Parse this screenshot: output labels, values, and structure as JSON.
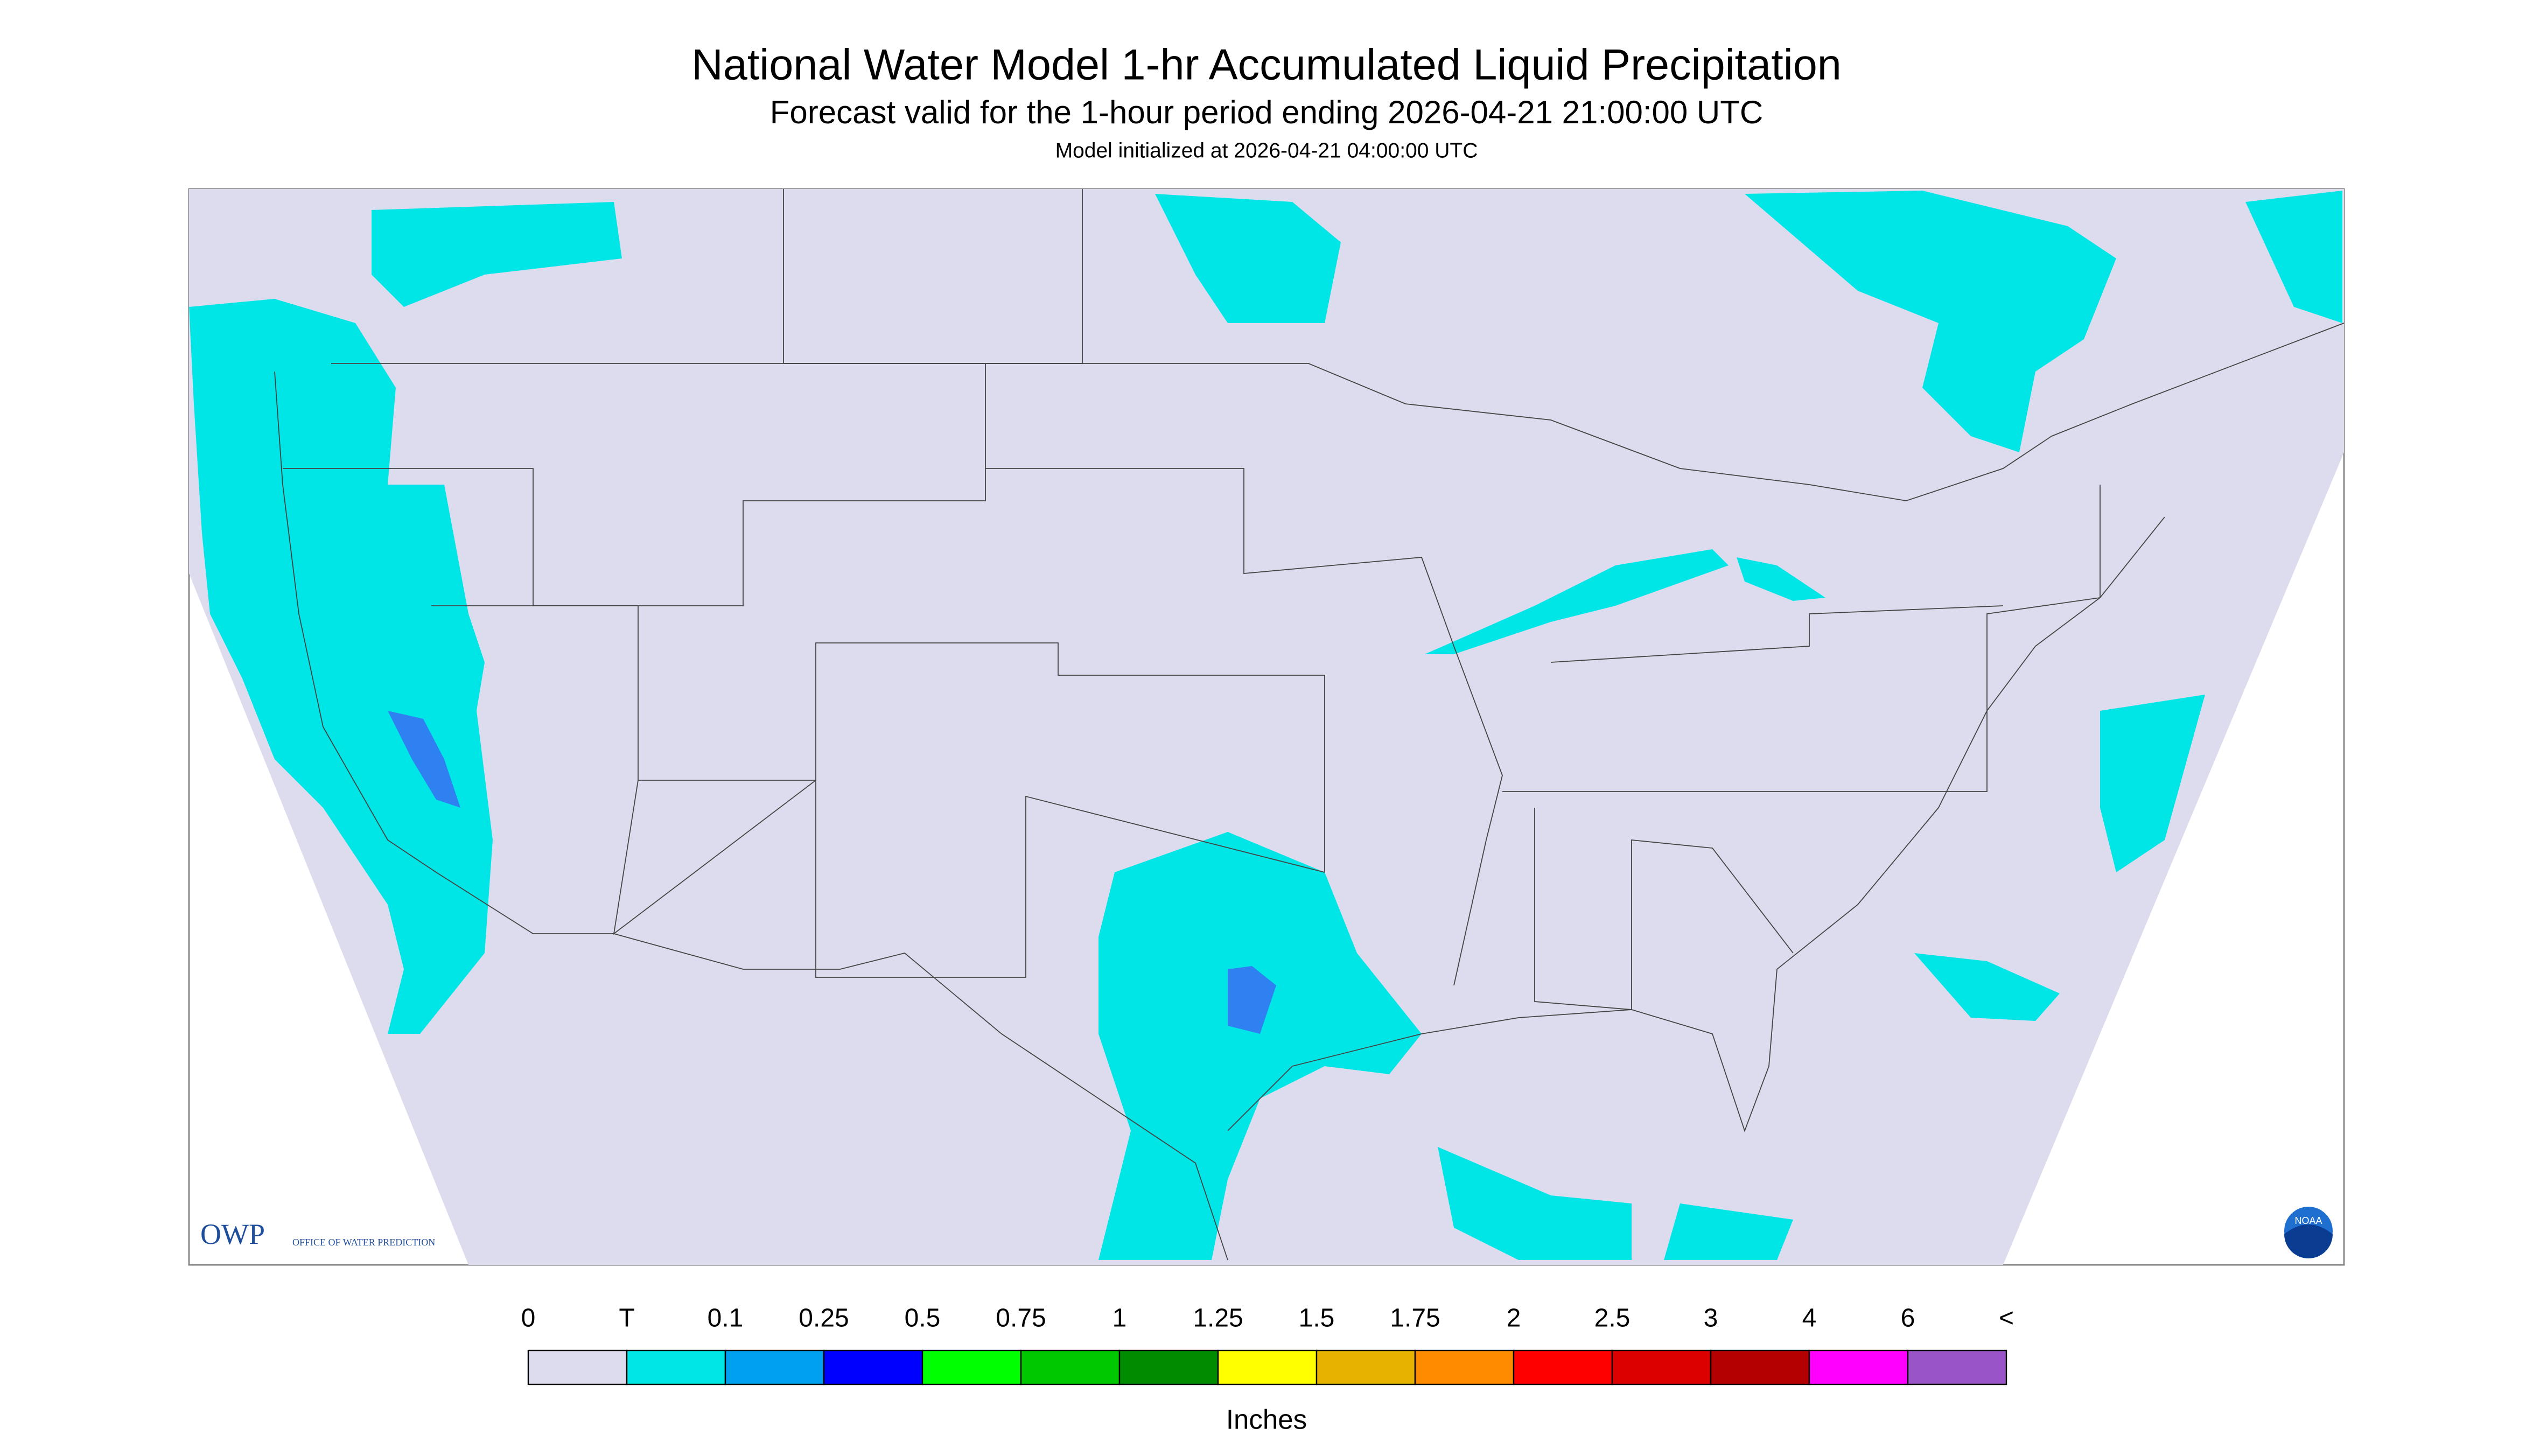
{
  "header": {
    "title": "National Water Model 1-hr Accumulated Liquid Precipitation",
    "subtitle": "Forecast valid for the 1-hour period ending 2026-04-21 21:00:00 UTC",
    "init": "Model initialized at 2026-04-21 04:00:00 UTC"
  },
  "logos": {
    "owp": "OWP",
    "owp_text": "OFFICE OF WATER PREDICTION",
    "noaa": "NOAA"
  },
  "legend": {
    "labels": [
      "0",
      "T",
      "0.1",
      "0.25",
      "0.5",
      "0.75",
      "1",
      "1.25",
      "1.5",
      "1.75",
      "2",
      "2.5",
      "3",
      "4",
      "6",
      "<"
    ],
    "colors": [
      "#dcdcee",
      "#00e6e6",
      "#00a0f0",
      "#0000ff",
      "#00ff00",
      "#00c800",
      "#008c00",
      "#ffff00",
      "#e6b400",
      "#ff8c00",
      "#ff0000",
      "#dc0000",
      "#b40000",
      "#ff00ff",
      "#9955c8"
    ],
    "unit": "Inches"
  }
}
